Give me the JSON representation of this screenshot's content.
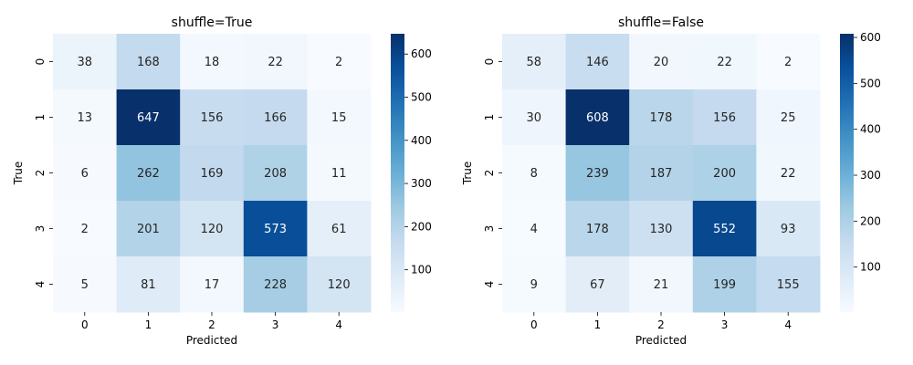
{
  "chart_data": [
    {
      "type": "heatmap",
      "title": "shuffle=True",
      "xlabel": "Predicted",
      "ylabel": "True",
      "x_categories": [
        "0",
        "1",
        "2",
        "3",
        "4"
      ],
      "y_categories": [
        "0",
        "1",
        "2",
        "3",
        "4"
      ],
      "values": [
        [
          38,
          168,
          18,
          22,
          2
        ],
        [
          13,
          647,
          156,
          166,
          15
        ],
        [
          6,
          262,
          169,
          208,
          11
        ],
        [
          2,
          201,
          120,
          573,
          61
        ],
        [
          5,
          81,
          17,
          228,
          120
        ]
      ],
      "colormap": "Blues",
      "colorbar": {
        "range": [
          2,
          647
        ],
        "ticks": [
          100,
          200,
          300,
          400,
          500,
          600
        ]
      }
    },
    {
      "type": "heatmap",
      "title": "shuffle=False",
      "xlabel": "Predicted",
      "ylabel": "True",
      "x_categories": [
        "0",
        "1",
        "2",
        "3",
        "4"
      ],
      "y_categories": [
        "0",
        "1",
        "2",
        "3",
        "4"
      ],
      "values": [
        [
          58,
          146,
          20,
          22,
          2
        ],
        [
          30,
          608,
          178,
          156,
          25
        ],
        [
          8,
          239,
          187,
          200,
          22
        ],
        [
          4,
          178,
          130,
          552,
          93
        ],
        [
          9,
          67,
          21,
          199,
          155
        ]
      ],
      "colormap": "Blues",
      "colorbar": {
        "range": [
          2,
          608
        ],
        "ticks": [
          100,
          200,
          300,
          400,
          500,
          600
        ]
      }
    }
  ]
}
